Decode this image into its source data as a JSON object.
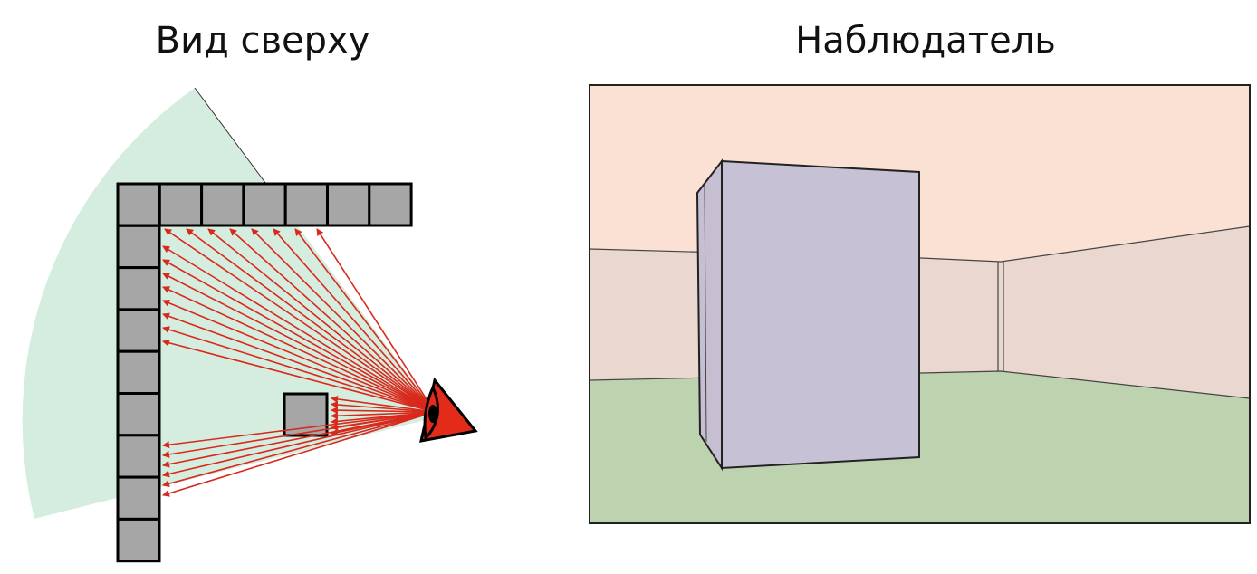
{
  "left_panel": {
    "title": "Вид сверху"
  },
  "right_panel": {
    "title": "Наблюдатель"
  }
}
